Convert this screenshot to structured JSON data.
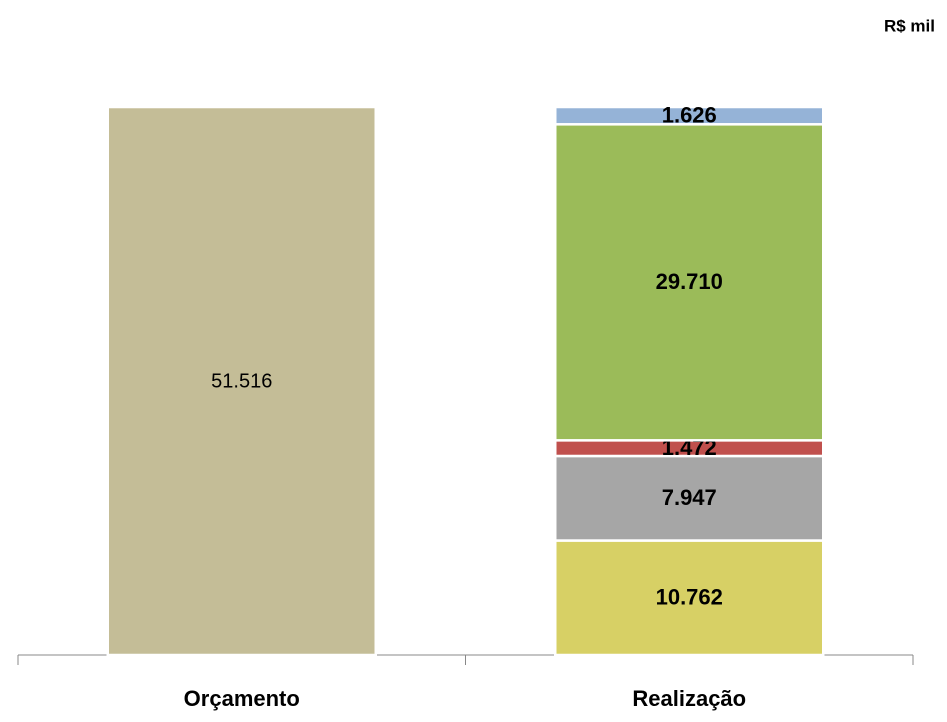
{
  "chart_data": {
    "type": "stacked_bar",
    "unit_label": "R$ mil",
    "categories": [
      "Orçamento",
      "Realização"
    ],
    "series": [
      {
        "color": "#c4bd97",
        "values": [
          51516,
          null
        ],
        "value_labels": [
          "51.516",
          null
        ]
      },
      {
        "color": "#d7d065",
        "values": [
          null,
          10762
        ],
        "value_labels": [
          null,
          "10.762"
        ]
      },
      {
        "color": "#a6a6a6",
        "values": [
          null,
          7947
        ],
        "value_labels": [
          null,
          "7.947"
        ]
      },
      {
        "color": "#c0504d",
        "values": [
          null,
          1472
        ],
        "value_labels": [
          null,
          "1.472"
        ]
      },
      {
        "color": "#9bbb59",
        "values": [
          null,
          29710
        ],
        "value_labels": [
          null,
          "29.710"
        ]
      },
      {
        "color": "#95b3d7",
        "values": [
          null,
          1626
        ],
        "value_labels": [
          null,
          "1.626"
        ]
      }
    ]
  }
}
